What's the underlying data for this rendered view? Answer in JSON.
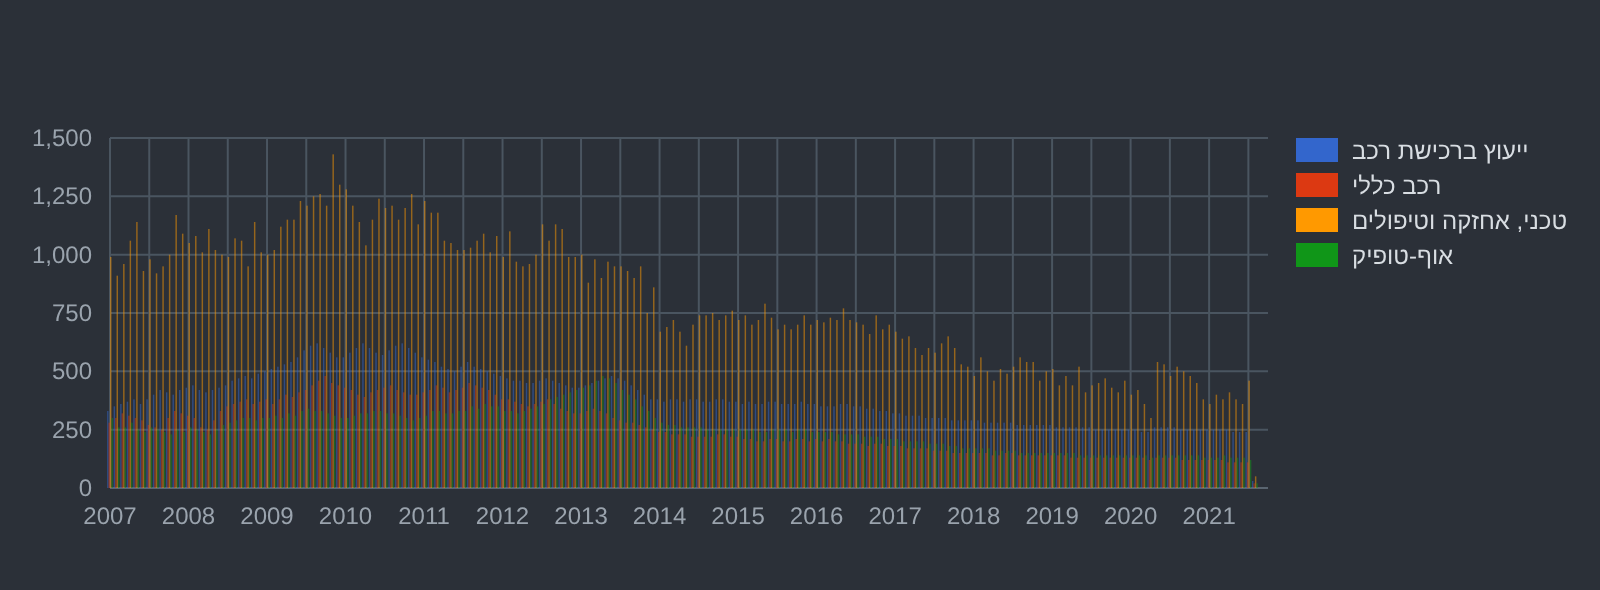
{
  "chart_data": {
    "type": "bar",
    "grid": true,
    "legend": "top right",
    "x": [
      "2007-01",
      "2007-02",
      "2007-03",
      "2007-04",
      "2007-05",
      "2007-06",
      "2007-07",
      "2007-08",
      "2007-09",
      "2007-10",
      "2007-11",
      "2007-12",
      "2008-01",
      "2008-02",
      "2008-03",
      "2008-04",
      "2008-05",
      "2008-06",
      "2008-07",
      "2008-08",
      "2008-09",
      "2008-10",
      "2008-11",
      "2008-12",
      "2009-01",
      "2009-02",
      "2009-03",
      "2009-04",
      "2009-05",
      "2009-06",
      "2009-07",
      "2009-08",
      "2009-09",
      "2009-10",
      "2009-11",
      "2009-12",
      "2010-01",
      "2010-02",
      "2010-03",
      "2010-04",
      "2010-05",
      "2010-06",
      "2010-07",
      "2010-08",
      "2010-09",
      "2010-10",
      "2010-11",
      "2010-12",
      "2011-01",
      "2011-02",
      "2011-03",
      "2011-04",
      "2011-05",
      "2011-06",
      "2011-07",
      "2011-08",
      "2011-09",
      "2011-10",
      "2011-11",
      "2011-12",
      "2012-01",
      "2012-02",
      "2012-03",
      "2012-04",
      "2012-05",
      "2012-06",
      "2012-07",
      "2012-08",
      "2012-09",
      "2012-10",
      "2012-11",
      "2012-12",
      "2013-01",
      "2013-02",
      "2013-03",
      "2013-04",
      "2013-05",
      "2013-06",
      "2013-07",
      "2013-08",
      "2013-09",
      "2013-10",
      "2013-11",
      "2013-12",
      "2014-01",
      "2014-02",
      "2014-03",
      "2014-04",
      "2014-05",
      "2014-06",
      "2014-07",
      "2014-08",
      "2014-09",
      "2014-10",
      "2014-11",
      "2014-12",
      "2015-01",
      "2015-02",
      "2015-03",
      "2015-04",
      "2015-05",
      "2015-06",
      "2015-07",
      "2015-08",
      "2015-09",
      "2015-10",
      "2015-11",
      "2015-12",
      "2016-01",
      "2016-02",
      "2016-03",
      "2016-04",
      "2016-05",
      "2016-06",
      "2016-07",
      "2016-08",
      "2016-09",
      "2016-10",
      "2016-11",
      "2016-12",
      "2017-01",
      "2017-02",
      "2017-03",
      "2017-04",
      "2017-05",
      "2017-06",
      "2017-07",
      "2017-08",
      "2017-09",
      "2017-10",
      "2017-11",
      "2017-12",
      "2018-01",
      "2018-02",
      "2018-03",
      "2018-04",
      "2018-05",
      "2018-06",
      "2018-07",
      "2018-08",
      "2018-09",
      "2018-10",
      "2018-11",
      "2018-12",
      "2019-01",
      "2019-02",
      "2019-03",
      "2019-04",
      "2019-05",
      "2019-06",
      "2019-07",
      "2019-08",
      "2019-09",
      "2019-10",
      "2019-11",
      "2019-12",
      "2020-01",
      "2020-02",
      "2020-03",
      "2020-04",
      "2020-05",
      "2020-06",
      "2020-07",
      "2020-08",
      "2020-09",
      "2020-10",
      "2020-11",
      "2020-12",
      "2021-01",
      "2021-02",
      "2021-03",
      "2021-04",
      "2021-05",
      "2021-06",
      "2021-07",
      "2021-08"
    ],
    "xlim": [
      "2007-01",
      "2021-10"
    ],
    "xticks": [
      {
        "value": "2007-01",
        "label": "2007"
      },
      {
        "value": "2007-07",
        "label": null
      },
      {
        "value": "2008-01",
        "label": "2008"
      },
      {
        "value": "2008-07",
        "label": null
      },
      {
        "value": "2009-01",
        "label": "2009"
      },
      {
        "value": "2009-07",
        "label": null
      },
      {
        "value": "2010-01",
        "label": "2010"
      },
      {
        "value": "2010-07",
        "label": null
      },
      {
        "value": "2011-01",
        "label": "2011"
      },
      {
        "value": "2011-07",
        "label": null
      },
      {
        "value": "2012-01",
        "label": "2012"
      },
      {
        "value": "2012-07",
        "label": null
      },
      {
        "value": "2013-01",
        "label": "2013"
      },
      {
        "value": "2013-07",
        "label": null
      },
      {
        "value": "2014-01",
        "label": "2014"
      },
      {
        "value": "2014-07",
        "label": null
      },
      {
        "value": "2015-01",
        "label": "2015"
      },
      {
        "value": "2015-07",
        "label": null
      },
      {
        "value": "2016-01",
        "label": "2016"
      },
      {
        "value": "2016-07",
        "label": null
      },
      {
        "value": "2017-01",
        "label": "2017"
      },
      {
        "value": "2017-07",
        "label": null
      },
      {
        "value": "2018-01",
        "label": "2018"
      },
      {
        "value": "2018-07",
        "label": null
      },
      {
        "value": "2019-01",
        "label": "2019"
      },
      {
        "value": "2019-07",
        "label": null
      },
      {
        "value": "2020-01",
        "label": "2020"
      },
      {
        "value": "2020-07",
        "label": null
      },
      {
        "value": "2021-01",
        "label": "2021"
      },
      {
        "value": "2021-07",
        "label": null
      }
    ],
    "ylim": [
      0,
      1500
    ],
    "yticks": [
      0,
      250,
      500,
      750,
      {
        "value": 1000,
        "label": "1,000"
      },
      {
        "value": 1250,
        "label": "1,250"
      },
      {
        "value": 1500,
        "label": "1,500"
      }
    ],
    "series": [
      {
        "name": "ייעוץ ברכישת רכב",
        "color": "#3366cc",
        "values": [
          330,
          350,
          360,
          370,
          380,
          360,
          380,
          400,
          420,
          410,
          400,
          420,
          430,
          440,
          420,
          410,
          420,
          430,
          440,
          460,
          470,
          480,
          470,
          490,
          500,
          510,
          520,
          530,
          540,
          560,
          590,
          610,
          620,
          600,
          580,
          560,
          560,
          580,
          600,
          620,
          600,
          580,
          570,
          590,
          610,
          620,
          600,
          580,
          560,
          550,
          540,
          520,
          510,
          500,
          520,
          540,
          520,
          510,
          500,
          490,
          480,
          470,
          460,
          460,
          450,
          450,
          460,
          470,
          460,
          450,
          440,
          430,
          430,
          440,
          450,
          460,
          470,
          480,
          470,
          460,
          440,
          420,
          400,
          380,
          380,
          370,
          380,
          380,
          370,
          380,
          380,
          370,
          370,
          380,
          380,
          370,
          370,
          360,
          370,
          360,
          360,
          370,
          370,
          360,
          360,
          360,
          370,
          360,
          360,
          350,
          350,
          350,
          360,
          360,
          350,
          350,
          340,
          340,
          330,
          330,
          320,
          320,
          310,
          310,
          310,
          300,
          300,
          300,
          300,
          290,
          290,
          290,
          290,
          290,
          280,
          280,
          280,
          280,
          280,
          270,
          270,
          270,
          270,
          270,
          270,
          260,
          260,
          260,
          260,
          260,
          260,
          250,
          250,
          250,
          250,
          250,
          250,
          250,
          240,
          240,
          260,
          260,
          260,
          260,
          250,
          250,
          250,
          250,
          250,
          250,
          250,
          250,
          240,
          240,
          240,
          30
        ]
      },
      {
        "name": "רכב כללי",
        "color": "#dc3912",
        "values": [
          280,
          300,
          320,
          310,
          300,
          290,
          270,
          260,
          250,
          300,
          330,
          320,
          310,
          300,
          260,
          250,
          290,
          330,
          350,
          360,
          370,
          380,
          360,
          370,
          380,
          360,
          380,
          400,
          390,
          410,
          420,
          440,
          460,
          480,
          450,
          440,
          430,
          420,
          400,
          390,
          410,
          420,
          430,
          440,
          420,
          410,
          400,
          400,
          410,
          420,
          440,
          430,
          410,
          420,
          430,
          450,
          440,
          430,
          420,
          400,
          380,
          380,
          370,
          360,
          350,
          360,
          370,
          380,
          360,
          340,
          330,
          320,
          320,
          330,
          340,
          330,
          320,
          300,
          290,
          280,
          280,
          270,
          260,
          250,
          240,
          240,
          230,
          230,
          230,
          220,
          220,
          220,
          220,
          230,
          230,
          220,
          220,
          210,
          210,
          200,
          200,
          210,
          210,
          200,
          200,
          210,
          210,
          200,
          210,
          200,
          210,
          200,
          200,
          190,
          190,
          190,
          180,
          190,
          190,
          180,
          180,
          180,
          170,
          170,
          170,
          170,
          160,
          160,
          160,
          150,
          150,
          150,
          150,
          150,
          150,
          140,
          140,
          150,
          150,
          140,
          140,
          140,
          140,
          140,
          140,
          140,
          140,
          130,
          130,
          130,
          130,
          130,
          130,
          130,
          130,
          130,
          130,
          130,
          130,
          120,
          130,
          130,
          130,
          130,
          120,
          120,
          120,
          120,
          120,
          120,
          120,
          110,
          110,
          110,
          110,
          20
        ]
      },
      {
        "name": "טכני, אחזקה וטיפולים",
        "color": "#ff9900",
        "values": [
          990,
          910,
          960,
          1060,
          1140,
          930,
          980,
          920,
          950,
          1000,
          1170,
          1090,
          1050,
          1080,
          1010,
          1110,
          1020,
          1000,
          990,
          1070,
          1060,
          950,
          1140,
          1010,
          1000,
          1020,
          1120,
          1150,
          1150,
          1230,
          1210,
          1250,
          1260,
          1210,
          1430,
          1300,
          1280,
          1210,
          1140,
          1040,
          1150,
          1240,
          1200,
          1210,
          1150,
          1200,
          1260,
          1130,
          1230,
          1180,
          1180,
          1060,
          1050,
          1020,
          1020,
          1030,
          1060,
          1090,
          1010,
          1080,
          990,
          1100,
          970,
          950,
          960,
          1000,
          1130,
          1060,
          1130,
          1110,
          990,
          990,
          1000,
          880,
          980,
          900,
          970,
          950,
          950,
          930,
          900,
          950,
          750,
          860,
          670,
          690,
          720,
          670,
          610,
          700,
          740,
          740,
          750,
          720,
          740,
          760,
          720,
          740,
          700,
          720,
          790,
          730,
          680,
          700,
          680,
          700,
          740,
          700,
          720,
          710,
          730,
          720,
          770,
          720,
          710,
          700,
          660,
          740,
          680,
          700,
          670,
          640,
          650,
          600,
          570,
          600,
          580,
          620,
          650,
          600,
          530,
          520,
          480,
          560,
          500,
          460,
          510,
          490,
          520,
          560,
          540,
          540,
          460,
          500,
          510,
          440,
          480,
          440,
          520,
          410,
          440,
          450,
          470,
          430,
          410,
          460,
          400,
          420,
          360,
          300,
          540,
          530,
          480,
          520,
          500,
          480,
          450,
          380,
          360,
          400,
          380,
          410,
          380,
          360,
          460,
          50
        ]
      },
      {
        "name": "אוף-טופיק",
        "color": "#109618",
        "values": [
          300,
          260,
          260,
          280,
          250,
          240,
          260,
          250,
          240,
          230,
          250,
          240,
          260,
          250,
          240,
          230,
          250,
          270,
          280,
          290,
          300,
          300,
          290,
          300,
          300,
          310,
          300,
          320,
          310,
          330,
          340,
          330,
          330,
          320,
          310,
          300,
          300,
          310,
          320,
          320,
          330,
          330,
          320,
          320,
          310,
          300,
          290,
          300,
          310,
          330,
          330,
          320,
          320,
          330,
          330,
          350,
          340,
          360,
          350,
          350,
          330,
          330,
          320,
          330,
          340,
          350,
          360,
          380,
          390,
          400,
          410,
          420,
          430,
          440,
          460,
          480,
          470,
          450,
          420,
          400,
          380,
          350,
          330,
          300,
          280,
          270,
          270,
          260,
          260,
          260,
          260,
          250,
          250,
          250,
          250,
          250,
          250,
          250,
          250,
          240,
          240,
          250,
          250,
          250,
          240,
          250,
          250,
          240,
          240,
          240,
          240,
          230,
          230,
          230,
          230,
          220,
          220,
          220,
          210,
          210,
          210,
          200,
          200,
          200,
          200,
          190,
          190,
          190,
          180,
          180,
          170,
          170,
          170,
          170,
          170,
          160,
          160,
          160,
          160,
          150,
          150,
          150,
          150,
          150,
          150,
          150,
          150,
          150,
          140,
          140,
          140,
          140,
          140,
          140,
          140,
          140,
          140,
          140,
          140,
          130,
          140,
          140,
          140,
          140,
          140,
          140,
          140,
          130,
          130,
          130,
          140,
          130,
          130,
          130,
          120,
          20
        ]
      }
    ]
  }
}
